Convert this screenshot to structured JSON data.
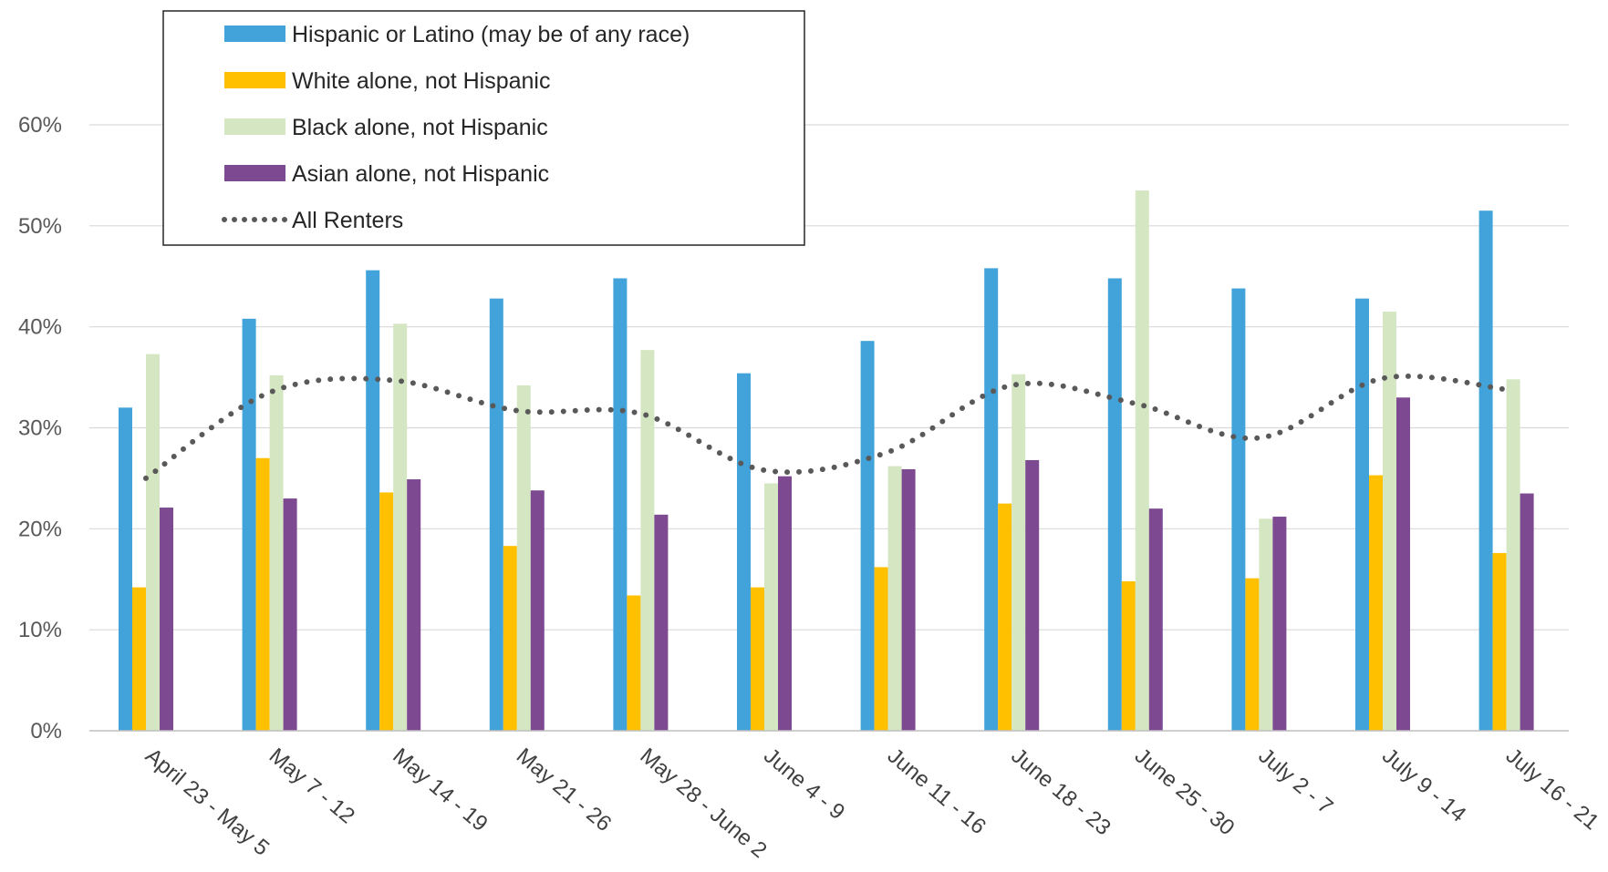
{
  "chart_data": {
    "type": "bar",
    "title": "",
    "xlabel": "",
    "ylabel": "",
    "ylim": [
      0,
      0.6
    ],
    "y_ticks": [
      {
        "value": 0,
        "label": "0%"
      },
      {
        "value": 0.1,
        "label": "10%"
      },
      {
        "value": 0.2,
        "label": "20%"
      },
      {
        "value": 0.3,
        "label": "30%"
      },
      {
        "value": 0.4,
        "label": "40%"
      },
      {
        "value": 0.5,
        "label": "50%"
      },
      {
        "value": 0.6,
        "label": "60%"
      }
    ],
    "grid": true,
    "legend_position": "top-left",
    "categories": [
      "April 23 - May 5",
      "May 7 - 12",
      "May 14 - 19",
      "May 21 - 26",
      "May 28 - June 2",
      "June 4 - 9",
      "June 11 - 16",
      "June 18 - 23",
      "June 25 - 30",
      "July 2 - 7",
      "July 9 - 14",
      "July 16 - 21"
    ],
    "series": [
      {
        "name": "Hispanic or Latino (may be of any race)",
        "type": "bar",
        "color": "#41A3DA",
        "values": [
          0.32,
          0.408,
          0.456,
          0.428,
          0.448,
          0.354,
          0.386,
          0.458,
          0.448,
          0.438,
          0.428,
          0.515
        ]
      },
      {
        "name": "White alone, not Hispanic",
        "type": "bar",
        "color": "#FFC000",
        "values": [
          0.142,
          0.27,
          0.236,
          0.183,
          0.134,
          0.142,
          0.162,
          0.225,
          0.148,
          0.151,
          0.253,
          0.176
        ]
      },
      {
        "name": "Black alone, not Hispanic",
        "type": "bar",
        "color": "#D5E6C2",
        "values": [
          0.373,
          0.352,
          0.403,
          0.342,
          0.377,
          0.245,
          0.262,
          0.353,
          0.535,
          0.21,
          0.415,
          0.348
        ]
      },
      {
        "name": "Asian alone, not Hispanic",
        "type": "bar",
        "color": "#7D4A92",
        "values": [
          0.221,
          0.23,
          0.249,
          0.238,
          0.214,
          0.252,
          0.259,
          0.268,
          0.22,
          0.212,
          0.33,
          0.235
        ]
      },
      {
        "name": "All Renters",
        "type": "line",
        "style": "dotted",
        "color": "#595959",
        "values": [
          0.25,
          0.335,
          0.347,
          0.317,
          0.314,
          0.258,
          0.276,
          0.342,
          0.324,
          0.29,
          0.349,
          0.338
        ]
      }
    ]
  }
}
